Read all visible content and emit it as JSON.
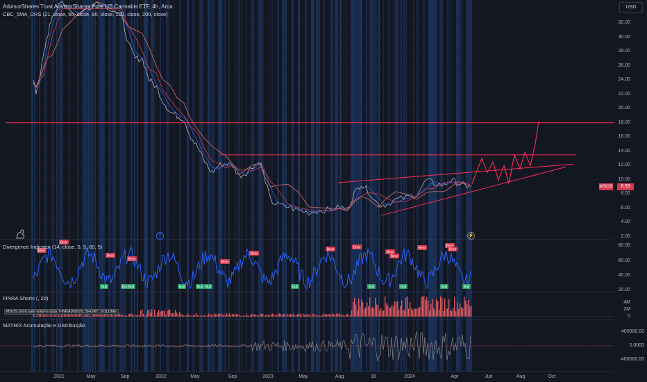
{
  "chart": {
    "title": "AdvisorShares Trust AdvisorShares Pure US Cannabis ETF, 4h, Arca",
    "indicator_line": "CBC_5MA_DRS (21, close, 50, close, 80, close, 100, close, 200, close)",
    "currency": "USD",
    "price_label_symbol": "MSOS",
    "price_label_value": "8.99",
    "price_axis": [
      "32.00",
      "30.00",
      "28.00",
      "26.00",
      "24.00",
      "22.00",
      "20.00",
      "18.00",
      "16.00",
      "14.00",
      "12.00",
      "10.00",
      "8.00",
      "6.00",
      "4.00",
      "2.00"
    ],
    "resistance_level": 18.0,
    "upper_resistance": 13.5,
    "colors": {
      "background": "#131722",
      "price": "#b2b5be",
      "ma_red": "#d43a4f",
      "ma_blue": "#2a5bd7",
      "trend": "#ff2d55",
      "band": "#1e3a68"
    }
  },
  "divergence": {
    "title": "Divergence Indicator (14, close, 5, 5, 60, 5)",
    "axis": [
      "80.00",
      "60.00",
      "40.00",
      "20.00"
    ],
    "bear_label": "Bear",
    "bull_label": "Bull"
  },
  "finra": {
    "title": "FINRA Shorts (, 20)",
    "data_label": "MSOS short sale volume data: FINRA:MSOS_SHORT_VOLUME",
    "axis": [
      "4M",
      "2M",
      "0"
    ]
  },
  "matrix": {
    "title": "MATRIX Acumulação e Distribuição",
    "axis": [
      "400000.00",
      "0.0000",
      "-400000.00"
    ]
  },
  "time_axis": [
    "2021",
    "May",
    "Sep",
    "2022",
    "May",
    "Sep",
    "2023",
    "May",
    "Aug",
    "16",
    "2024",
    "Apr",
    "Jun",
    "Aug",
    "Oct"
  ],
  "markers": {
    "d_label": "D"
  }
}
